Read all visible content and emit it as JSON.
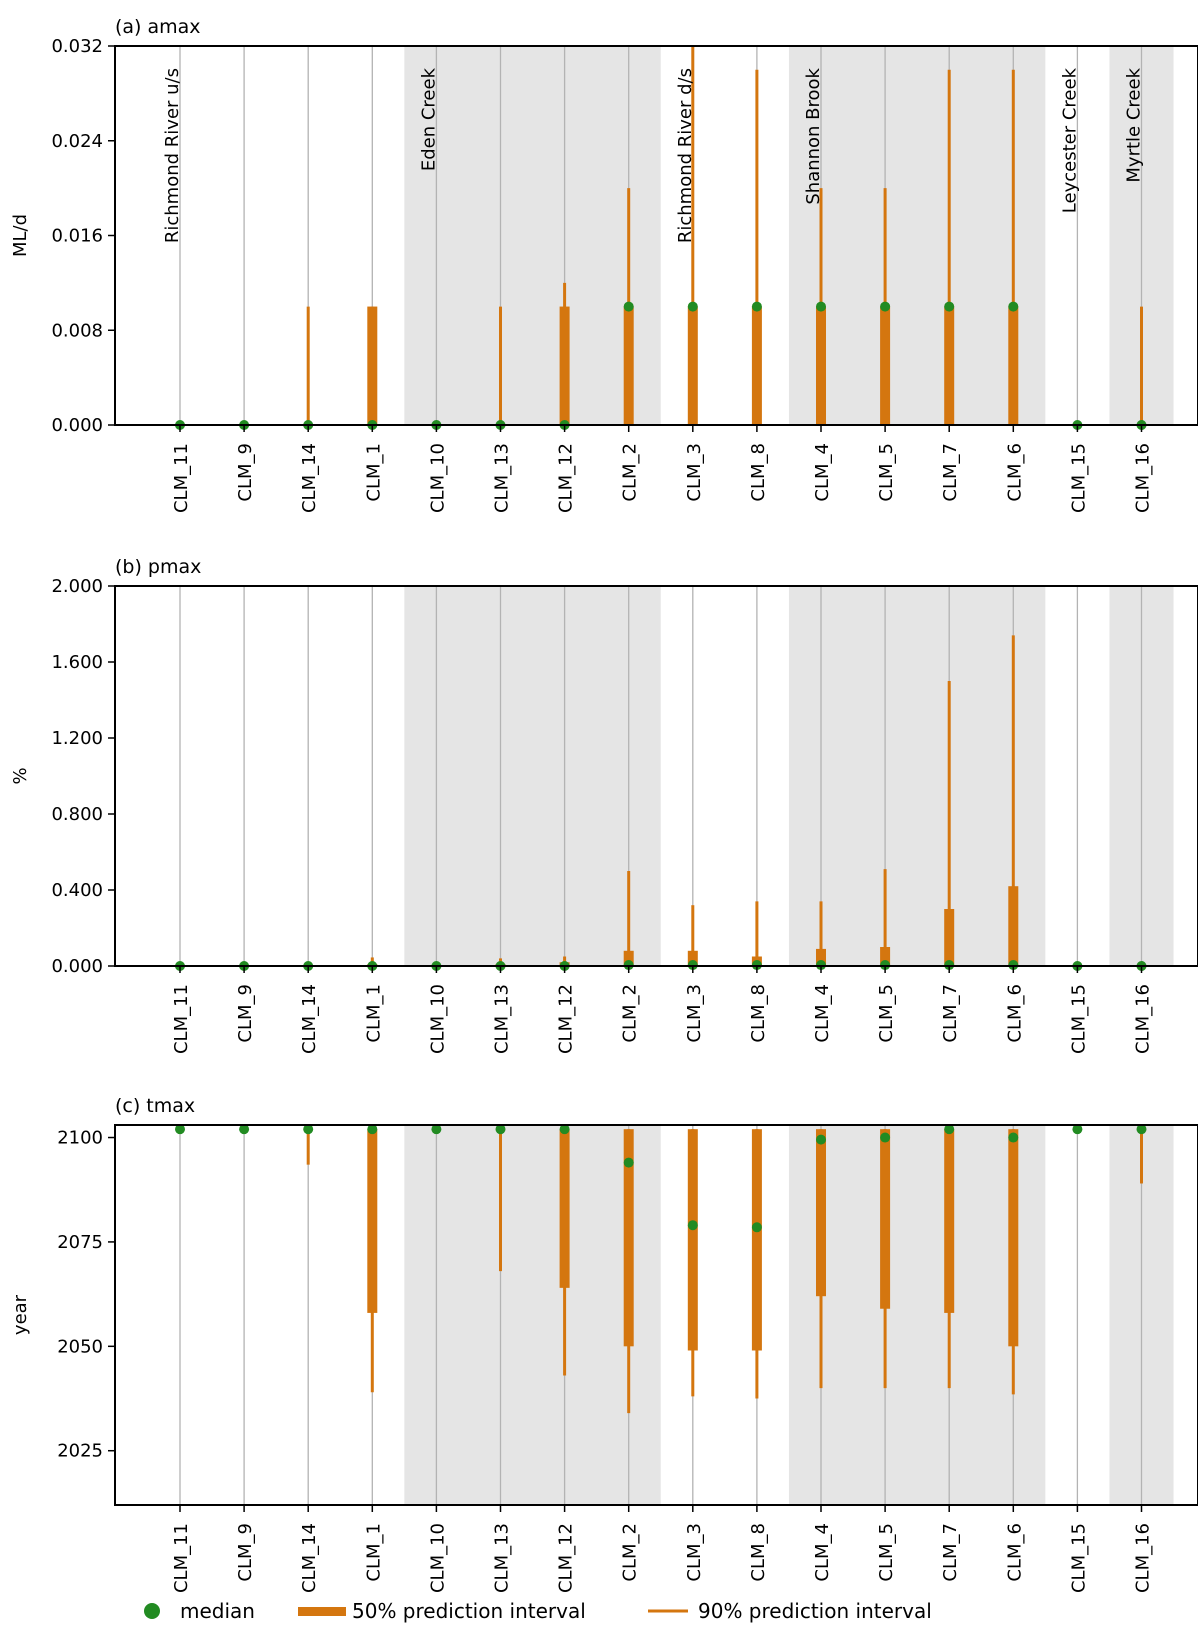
{
  "chart_data": [
    {
      "type": "interval",
      "title": "(a) amax",
      "ylabel": "ML/d",
      "ylim": [
        0,
        0.032
      ],
      "yticks": [
        "0.000",
        "0.008",
        "0.016",
        "0.024",
        "0.032"
      ],
      "categories": [
        "CLM_11",
        "CLM_9",
        "CLM_14",
        "CLM_1",
        "CLM_10",
        "CLM_13",
        "CLM_12",
        "CLM_2",
        "CLM_3",
        "CLM_8",
        "CLM_4",
        "CLM_5",
        "CLM_7",
        "CLM_6",
        "CLM_15",
        "CLM_16"
      ],
      "median": [
        0,
        0,
        0,
        0,
        0,
        0,
        0,
        0.01,
        0.01,
        0.01,
        0.01,
        0.01,
        0.01,
        0.01,
        0,
        0
      ],
      "p50_low": [
        0,
        0,
        0,
        0,
        0,
        0,
        0,
        0,
        0,
        0,
        0,
        0,
        0,
        0,
        0,
        0
      ],
      "p50_high": [
        0,
        0,
        0,
        0.01,
        0,
        0,
        0.01,
        0.01,
        0.01,
        0.01,
        0.01,
        0.01,
        0.01,
        0.01,
        0,
        0
      ],
      "p90_low": [
        0,
        0,
        0,
        0,
        0,
        0,
        0,
        0,
        0,
        0,
        0,
        0,
        0,
        0,
        0,
        0
      ],
      "p90_high": [
        0,
        0,
        0.01,
        0.01,
        0,
        0.01,
        0.012,
        0.02,
        0.032,
        0.03,
        0.02,
        0.02,
        0.03,
        0.03,
        0,
        0.01
      ],
      "reach_labels": [
        {
          "text": "Richmond River u/s",
          "index": 0
        },
        {
          "text": "Eden Creek",
          "index": 4
        },
        {
          "text": "Richmond River d/s",
          "index": 8
        },
        {
          "text": "Shannon Brook",
          "index": 10
        },
        {
          "text": "Leycester Creek",
          "index": 14
        },
        {
          "text": "Myrtle Creek",
          "index": 15
        }
      ]
    },
    {
      "type": "interval",
      "title": "(b) pmax",
      "ylabel": "%",
      "ylim": [
        0,
        2.0
      ],
      "yticks": [
        "0.000",
        "0.400",
        "0.800",
        "1.200",
        "1.600",
        "2.000"
      ],
      "categories": [
        "CLM_11",
        "CLM_9",
        "CLM_14",
        "CLM_1",
        "CLM_10",
        "CLM_13",
        "CLM_12",
        "CLM_2",
        "CLM_3",
        "CLM_8",
        "CLM_4",
        "CLM_5",
        "CLM_7",
        "CLM_6",
        "CLM_15",
        "CLM_16"
      ],
      "median": [
        0,
        0,
        0,
        0,
        0,
        0,
        0,
        0.005,
        0.005,
        0.005,
        0.005,
        0.005,
        0.005,
        0.005,
        0,
        0
      ],
      "p50_low": [
        0,
        0,
        0,
        0,
        0,
        0,
        0,
        0,
        0,
        0,
        0,
        0,
        0,
        0,
        0,
        0
      ],
      "p50_high": [
        0,
        0,
        0,
        0.01,
        0,
        0.01,
        0.02,
        0.08,
        0.08,
        0.05,
        0.09,
        0.1,
        0.3,
        0.42,
        0,
        0
      ],
      "p90_low": [
        0,
        0,
        0,
        0,
        0,
        0,
        0,
        0,
        0,
        0,
        0,
        0,
        0,
        0,
        0,
        0
      ],
      "p90_high": [
        0,
        0,
        0,
        0.045,
        0,
        0.04,
        0.05,
        0.5,
        0.32,
        0.34,
        0.34,
        0.51,
        1.5,
        1.74,
        0,
        0
      ]
    },
    {
      "type": "interval",
      "title": "(c) tmax",
      "ylabel": "year",
      "ylim": [
        2012,
        2103
      ],
      "yticks": [
        "2025",
        "2050",
        "2075",
        "2100"
      ],
      "ytick_values": [
        2025,
        2050,
        2075,
        2100
      ],
      "categories": [
        "CLM_11",
        "CLM_9",
        "CLM_14",
        "CLM_1",
        "CLM_10",
        "CLM_13",
        "CLM_12",
        "CLM_2",
        "CLM_3",
        "CLM_8",
        "CLM_4",
        "CLM_5",
        "CLM_7",
        "CLM_6",
        "CLM_15",
        "CLM_16"
      ],
      "median": [
        2102,
        2102,
        2102,
        2102,
        2102,
        2102,
        2102,
        2094,
        2079,
        2078.5,
        2099.5,
        2100,
        2102,
        2100,
        2102,
        2102
      ],
      "p50_low": [
        2102,
        2102,
        2102,
        2058,
        2102,
        2102,
        2064,
        2050,
        2049,
        2049,
        2062,
        2059,
        2058,
        2050,
        2102,
        2102
      ],
      "p50_high": [
        2102,
        2102,
        2102,
        2102,
        2102,
        2102,
        2102,
        2102,
        2102,
        2102,
        2102,
        2102,
        2102,
        2102,
        2102,
        2102
      ],
      "p90_low": [
        2102,
        2102,
        2093.5,
        2039,
        2102,
        2068,
        2043,
        2034,
        2038,
        2037.5,
        2040,
        2040,
        2040,
        2038.5,
        2102,
        2089
      ],
      "p90_high": [
        2102,
        2102,
        2102,
        2102,
        2102,
        2102,
        2102,
        2102,
        2102,
        2102,
        2102,
        2102,
        2102,
        2102,
        2102,
        2102
      ]
    }
  ],
  "legend": {
    "median": "median",
    "p50": "50% prediction interval",
    "p90": "90% prediction interval"
  },
  "colors": {
    "median": "#228b22",
    "interval": "#d4760f",
    "shade": "#e5e5e5",
    "gridline": "#b3b3b3"
  }
}
